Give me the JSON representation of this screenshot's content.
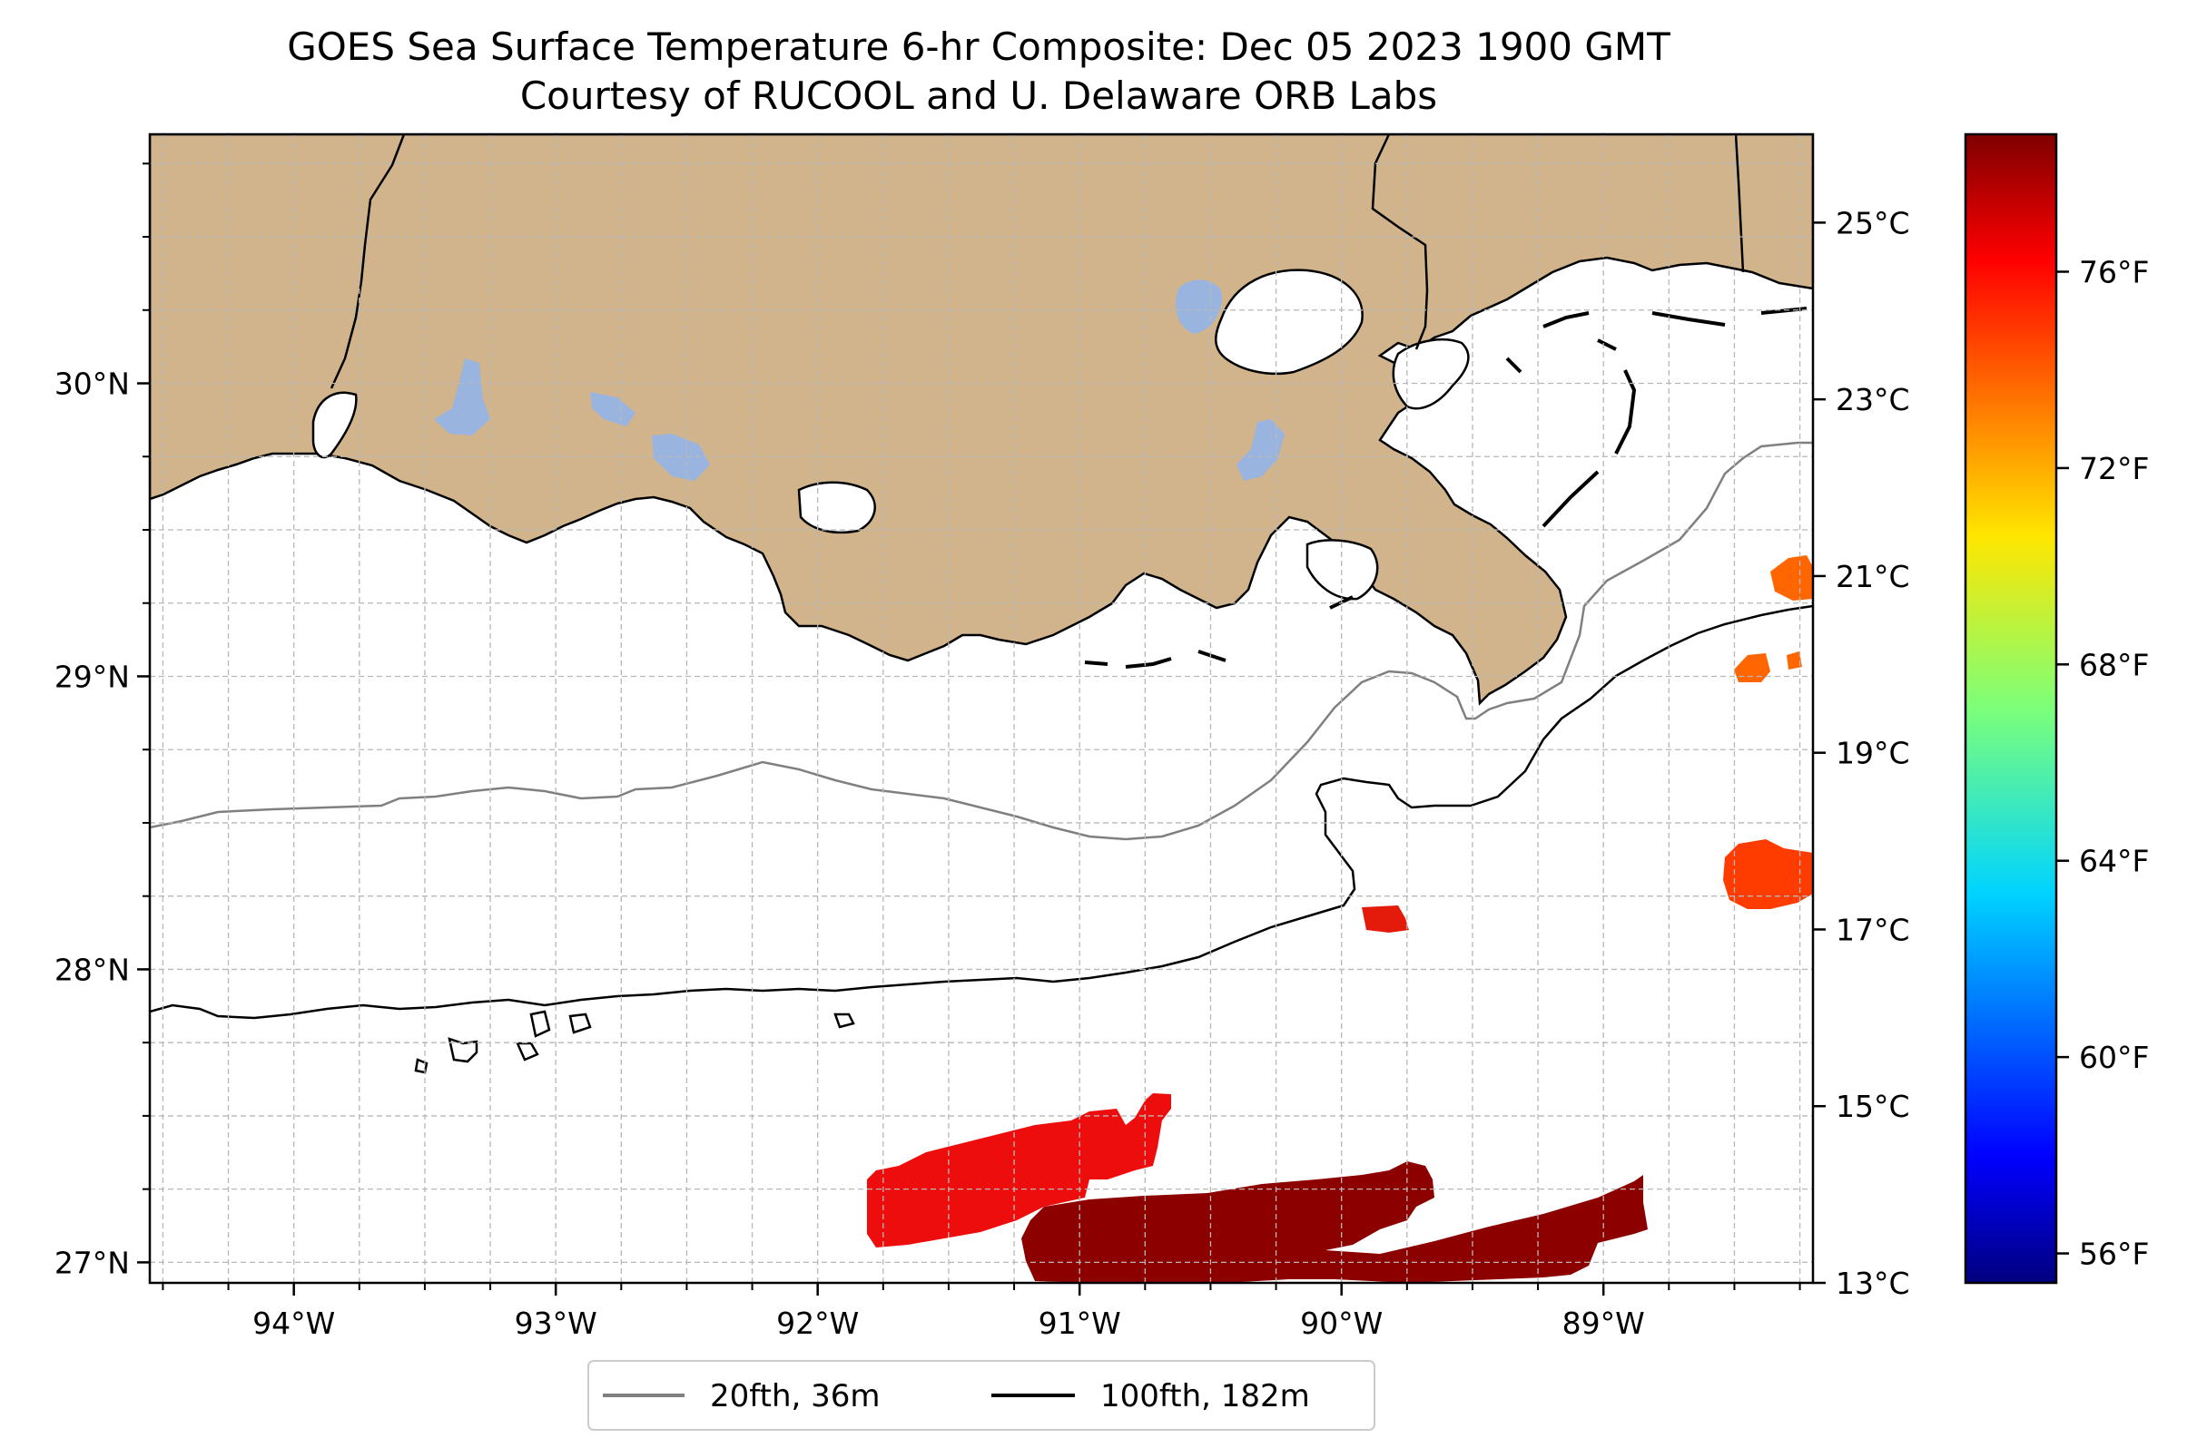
{
  "title": {
    "line1": "GOES Sea Surface Temperature 6-hr Composite: Dec 05 2023 1900 GMT",
    "line2": "Courtesy of RUCOOL and U. Delaware ORB Labs"
  },
  "map": {
    "lon_range": [
      -94.55,
      -88.2
    ],
    "lat_range": [
      26.93,
      30.85
    ],
    "lon_ticks": [
      {
        "value": -94,
        "label": "94°W"
      },
      {
        "value": -93,
        "label": "93°W"
      },
      {
        "value": -92,
        "label": "92°W"
      },
      {
        "value": -91,
        "label": "91°W"
      },
      {
        "value": -90,
        "label": "90°W"
      },
      {
        "value": -89,
        "label": "89°W"
      }
    ],
    "lat_ticks": [
      {
        "value": 27,
        "label": "27°N"
      },
      {
        "value": 28,
        "label": "28°N"
      },
      {
        "value": 29,
        "label": "29°N"
      },
      {
        "value": 30,
        "label": "30°N"
      }
    ],
    "grid": true,
    "land_color": "#d2b48c",
    "lake_color": "#9ab4e0",
    "ocean_color": "#ffffff"
  },
  "colorbar": {
    "cmap": "jet",
    "range_c": [
      13,
      26
    ],
    "celsius_ticks": [
      {
        "value": 25,
        "label": "25°C"
      },
      {
        "value": 23,
        "label": "23°C"
      },
      {
        "value": 21,
        "label": "21°C"
      },
      {
        "value": 19,
        "label": "19°C"
      },
      {
        "value": 17,
        "label": "17°C"
      },
      {
        "value": 15,
        "label": "15°C"
      },
      {
        "value": 13,
        "label": "13°C"
      }
    ],
    "fahrenheit_ticks": [
      {
        "value": 76,
        "label": "76°F"
      },
      {
        "value": 72,
        "label": "72°F"
      },
      {
        "value": 68,
        "label": "68°F"
      },
      {
        "value": 64,
        "label": "64°F"
      },
      {
        "value": 60,
        "label": "60°F"
      },
      {
        "value": 56,
        "label": "56°F"
      }
    ]
  },
  "legend": {
    "items": [
      {
        "label": "20fth, 36m",
        "color": "#808080"
      },
      {
        "label": "100fth, 182m",
        "color": "#000000"
      }
    ]
  }
}
